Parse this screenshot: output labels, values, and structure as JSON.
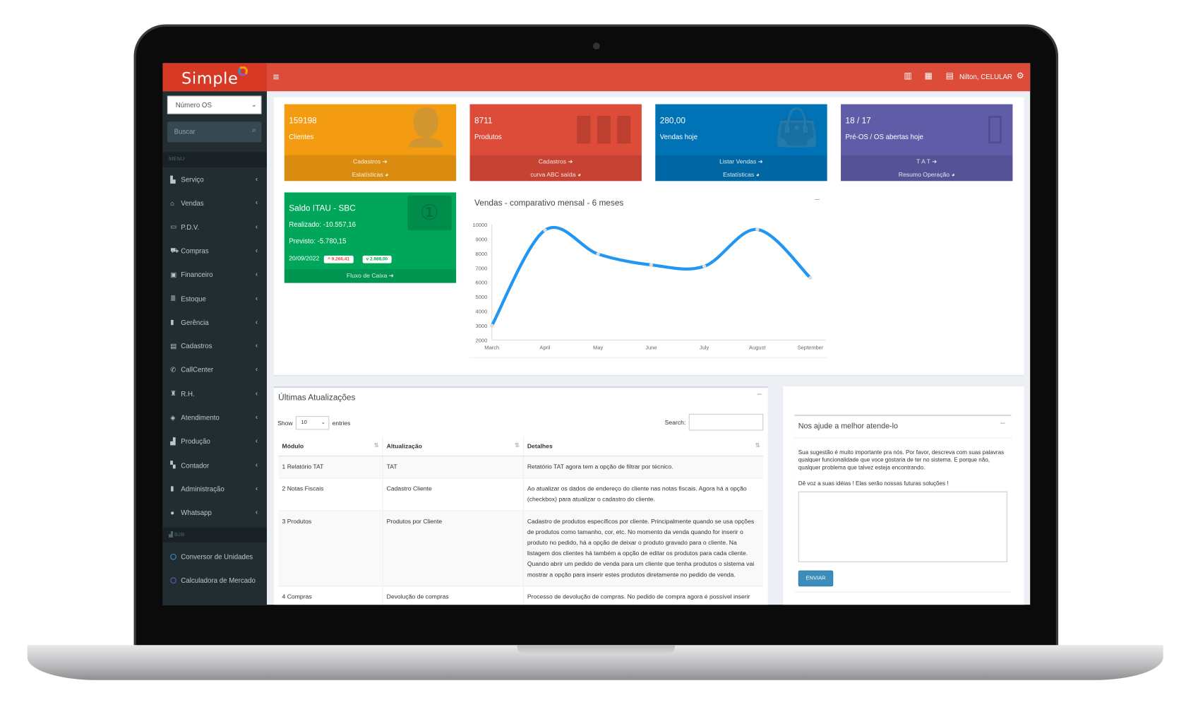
{
  "app": {
    "logo": "Simple",
    "logo_suffix": "DOT",
    "user": "Nilton, CELULAR",
    "icons": [
      "menu-icon",
      "bar-chart-icon",
      "calendar-icon",
      "user-card-icon",
      "cogs-icon"
    ]
  },
  "colors": {
    "topbar": "#dd4b39",
    "sidebar": "#222d32",
    "orange": "#f39c12",
    "red": "#dd4b39",
    "blue": "#0073b7",
    "purple": "#605ca8",
    "green": "#00a65a",
    "line": "#2196f3"
  },
  "sidebar": {
    "select_value": "Número OS",
    "search_placeholder": "Buscar",
    "menu_header": "MENU",
    "items": [
      {
        "label": "Serviço",
        "icon": "▙"
      },
      {
        "label": "Vendas",
        "icon": "⌂"
      },
      {
        "label": "P.D.V.",
        "icon": "▭"
      },
      {
        "label": "Compras",
        "icon": "⛟"
      },
      {
        "label": "Financeiro",
        "icon": "▣"
      },
      {
        "label": "Estoque",
        "icon": "≣"
      },
      {
        "label": "Gerência",
        "icon": "▮"
      },
      {
        "label": "Cadastros",
        "icon": "▤"
      },
      {
        "label": "CallCenter",
        "icon": "✆"
      },
      {
        "label": "R.H.",
        "icon": "♜"
      },
      {
        "label": "Atendimento",
        "icon": "◈"
      },
      {
        "label": "Produção",
        "icon": "▟"
      },
      {
        "label": "Contador",
        "icon": "▚"
      },
      {
        "label": "Administração",
        "icon": "▮"
      },
      {
        "label": "Whatsapp",
        "icon": "●"
      }
    ],
    "b2b_header": "B2B",
    "b2b_items": [
      "Conversor de Unidades",
      "Calculadora de Mercado"
    ]
  },
  "cards": [
    {
      "value": "159198",
      "label": "Clientes",
      "links": [
        "Cadastros ➜",
        "Estatísticas ◕"
      ],
      "color": "#f39c12",
      "icon": "user-plus-icon"
    },
    {
      "value": "8711",
      "label": "Produtos",
      "links": [
        "Cadastros ➜",
        "curva ABC saída ◕"
      ],
      "color": "#dd4b39",
      "icon": "barcode-icon"
    },
    {
      "value": "280,00",
      "label": "Vendas hoje",
      "links": [
        "Listar Vendas ➜",
        "Estatísticas ◕"
      ],
      "color": "#0073b7",
      "icon": "shopping-bag-icon"
    },
    {
      "value": "18 / 17",
      "label": "Pré-OS / OS abertas hoje",
      "links": [
        "T A T ➜",
        "Resumo Operação ◕"
      ],
      "color": "#605ca8",
      "icon": "file-icon"
    }
  ],
  "saldo": {
    "title": "Saldo ITAU - SBC",
    "realizado": "Realizado: -10.557,16",
    "previsto": "Previsto: -5.780,15",
    "date": "20/09/2022",
    "up": "^ 9.266,41",
    "down": "v 2.988,00",
    "link": "Fluxo de Caixa ➜"
  },
  "chart_data": {
    "type": "line",
    "title": "Vendas - comparativo mensal - 6 meses",
    "categories": [
      "March",
      "April",
      "May",
      "June",
      "July",
      "August",
      "September"
    ],
    "values": [
      3000,
      9600,
      7950,
      7200,
      7100,
      9650,
      6300
    ],
    "ylim": [
      2000,
      10000
    ],
    "yticks": [
      "10000",
      "9000",
      "8000",
      "7000",
      "6000",
      "5000",
      "4000",
      "3000",
      "2000"
    ],
    "smooth": true
  },
  "updates": {
    "title": "Últimas Atualizações",
    "show": "Show",
    "entries_value": "10",
    "entries": "entries",
    "search": "Search:",
    "columns": [
      "Módulo",
      "Altualização",
      "Detalhes"
    ],
    "rows": [
      [
        "1 Relatório TAT",
        "TAT",
        "Retatório TAT agora tem a opção de filtrar por técnico."
      ],
      [
        "2 Notas Fiscais",
        "Cadastro Cliente",
        "Ao atualizar os dados de endereço do cliente nas notas fiscais. Agora há a opção (checkbox) para atualizar o cadastro do cliente."
      ],
      [
        "3 Produtos",
        "Produtos por Cliente",
        "Cadastro de produtos específicos por cliente. Principalmente quando se usa opções de produtos como tamanho, cor, etc. No momento da venda quando for inserir o produto no pedido, há a opção de deixar o produto gravado para o cliente. Na listagem dos clientes há também a opção de editar os produtos para cada cliente. Quando abrir um pedido de venda para um cliente que tenha produtos o sistema vai mostrar a opção para inserir estes produtos diretamente no pedido de venda."
      ],
      [
        "4 Compras",
        "Devolução de compras",
        "Processo de devolução de compras. No pedido de compra agora é possível inserir ítens de devolução. No caso do pedido ficar com valor negativo, será gerado um crédito no"
      ]
    ]
  },
  "feedback": {
    "title": "Nos ajude a melhor atende-lo",
    "text1": "Sua sugestão é muito importante pra nós. Por favor, descreva com suas palavras qualquer funcionalidade que voce gostaria de ter no sistema. E porque não, qualquer problema que talvez esteja encontrando.",
    "text2": "Dê voz a suas idéias ! Elas serão nossas futuras soluções !",
    "button": "ENVIAR"
  }
}
